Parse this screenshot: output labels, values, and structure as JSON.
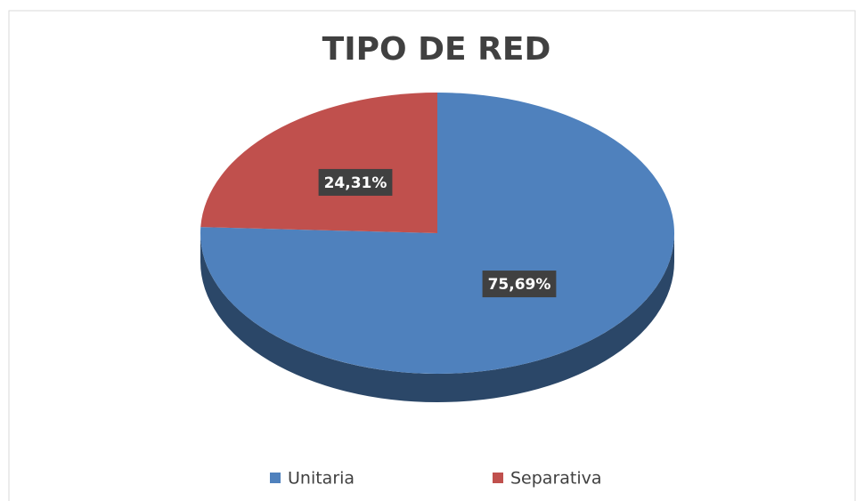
{
  "chart_data": {
    "type": "pie",
    "title": "TIPO DE RED",
    "categories": [
      "Unitaria",
      "Separativa"
    ],
    "values": [
      75.69,
      24.31
    ],
    "value_labels": [
      "75,69%",
      "24,31%"
    ],
    "colors": [
      "#4f81bd",
      "#c0504d"
    ],
    "legend": "bottom"
  }
}
